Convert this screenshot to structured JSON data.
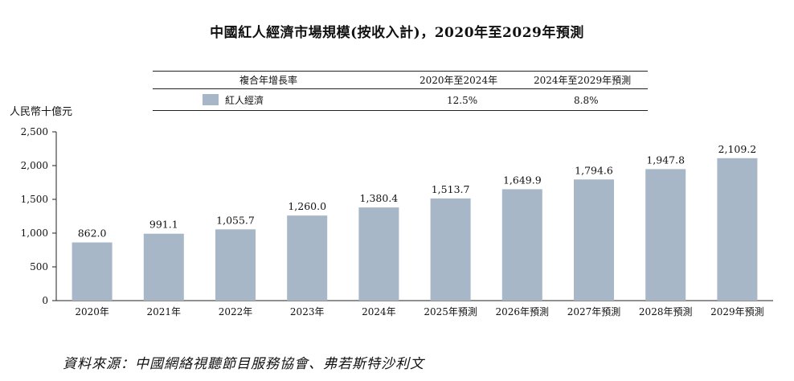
{
  "chart_data": {
    "type": "bar",
    "title": "中國紅人經濟市場規模(按收入計)，2020年至2029年預測",
    "ylabel": "人民幣十億元",
    "xlabel": "",
    "ylim": [
      0,
      2500
    ],
    "yticks": [
      "0",
      "500",
      "1,000",
      "1,500",
      "2,000",
      "2,500"
    ],
    "ytick_values": [
      0,
      500,
      1000,
      1500,
      2000,
      2500
    ],
    "categories": [
      "2020年",
      "2021年",
      "2022年",
      "2023年",
      "2024年",
      "2025年預測",
      "2026年預測",
      "2027年預測",
      "2028年預測",
      "2029年預測"
    ],
    "values": [
      862.0,
      991.1,
      1055.7,
      1260.0,
      1380.4,
      1513.7,
      1649.9,
      1794.6,
      1947.8,
      2109.2
    ],
    "value_labels": [
      "862.0",
      "991.1",
      "1,055.7",
      "1,260.0",
      "1,380.4",
      "1,513.7",
      "1,649.9",
      "1,794.6",
      "1,947.8",
      "2,109.2"
    ],
    "series_name": "紅人經濟",
    "bar_color": "#a8b7c7",
    "axis_color": "#222222",
    "grid": false
  },
  "cagr_table": {
    "header_label": "複合年增長率",
    "period1": "2020年至2024年",
    "period2": "2024年至2029年預測",
    "legend_label": "紅人經濟",
    "value1": "12.5%",
    "value2": "8.8%"
  },
  "source_note": "資料來源：中國網絡視聽節目服務協會、弗若斯特沙利文"
}
